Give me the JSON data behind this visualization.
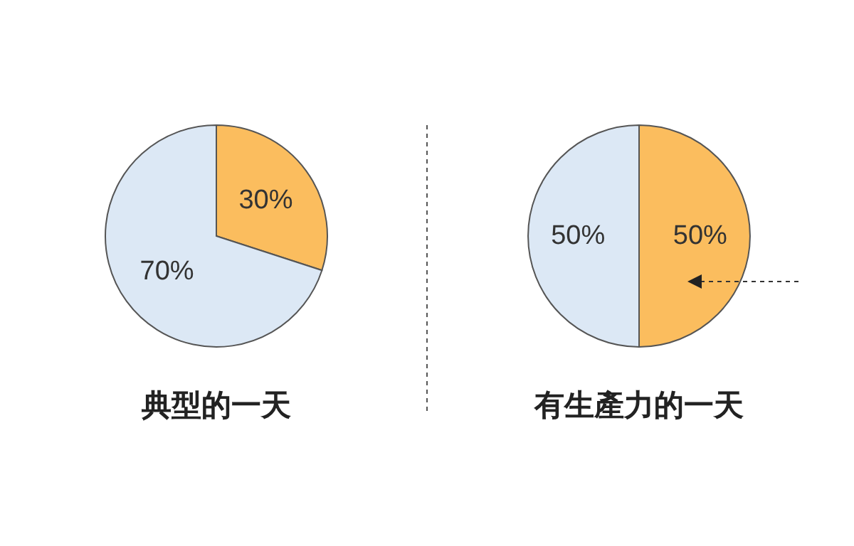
{
  "chart_data": [
    {
      "type": "pie",
      "title": "典型的一天",
      "categories": [
        null,
        null
      ],
      "values": [
        30,
        70
      ],
      "colors": [
        "#fbbd5e",
        "#dce8f5"
      ],
      "value_labels": [
        "30%",
        "70%"
      ]
    },
    {
      "type": "pie",
      "title": "有生產力的一天",
      "categories": [
        null,
        null
      ],
      "values": [
        50,
        50
      ],
      "colors": [
        "#fbbd5e",
        "#dce8f5"
      ],
      "value_labels": [
        "50%",
        "50%"
      ]
    }
  ]
}
